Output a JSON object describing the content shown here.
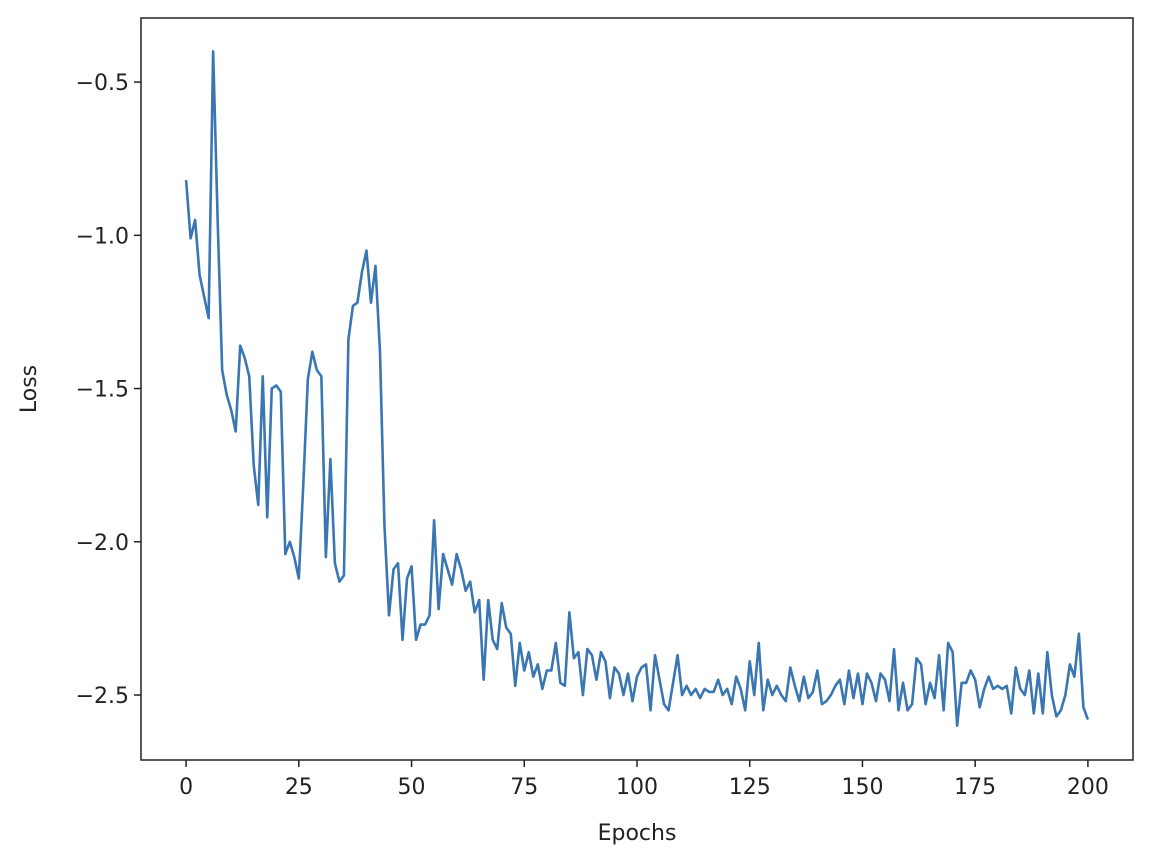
{
  "chart_data": {
    "type": "line",
    "x_label": "Epochs",
    "y_label": "Loss",
    "xlim": [
      -10,
      210
    ],
    "ylim": [
      -2.712,
      -0.291
    ],
    "xticks": [
      0,
      25,
      50,
      75,
      100,
      125,
      150,
      175,
      200
    ],
    "yticks": [
      {
        "value": -0.5,
        "label": "−0.5"
      },
      {
        "value": -1.0,
        "label": "−1.0"
      },
      {
        "value": -1.5,
        "label": "−1.5"
      },
      {
        "value": -2.0,
        "label": "−2.0"
      },
      {
        "value": -2.5,
        "label": "−2.5"
      }
    ],
    "x": [
      0,
      1,
      2,
      3,
      4,
      5,
      6,
      7,
      8,
      9,
      10,
      11,
      12,
      13,
      14,
      15,
      16,
      17,
      18,
      19,
      20,
      21,
      22,
      23,
      24,
      25,
      26,
      27,
      28,
      29,
      30,
      31,
      32,
      33,
      34,
      35,
      36,
      37,
      38,
      39,
      40,
      41,
      42,
      43,
      44,
      45,
      46,
      47,
      48,
      49,
      50,
      51,
      52,
      53,
      54,
      55,
      56,
      57,
      58,
      59,
      60,
      61,
      62,
      63,
      64,
      65,
      66,
      67,
      68,
      69,
      70,
      71,
      72,
      73,
      74,
      75,
      76,
      77,
      78,
      79,
      80,
      81,
      82,
      83,
      84,
      85,
      86,
      87,
      88,
      89,
      90,
      91,
      92,
      93,
      94,
      95,
      96,
      97,
      98,
      99,
      100,
      101,
      102,
      103,
      104,
      105,
      106,
      107,
      108,
      109,
      110,
      111,
      112,
      113,
      114,
      115,
      116,
      117,
      118,
      119,
      120,
      121,
      122,
      123,
      124,
      125,
      126,
      127,
      128,
      129,
      130,
      131,
      132,
      133,
      134,
      135,
      136,
      137,
      138,
      139,
      140,
      141,
      142,
      143,
      144,
      145,
      146,
      147,
      148,
      149,
      150,
      151,
      152,
      153,
      154,
      155,
      156,
      157,
      158,
      159,
      160,
      161,
      162,
      163,
      164,
      165,
      166,
      167,
      168,
      169,
      170,
      171,
      172,
      173,
      174,
      175,
      176,
      177,
      178,
      179,
      180,
      181,
      182,
      183,
      184,
      185,
      186,
      187,
      188,
      189,
      190,
      191,
      192,
      193,
      194,
      195,
      196,
      197,
      198,
      199,
      200
    ],
    "series": [
      {
        "color": "#3a76b2",
        "values": [
          -0.82,
          -1.01,
          -0.95,
          -1.13,
          -1.2,
          -1.27,
          -0.4,
          -0.95,
          -1.44,
          -1.52,
          -1.57,
          -1.64,
          -1.36,
          -1.4,
          -1.46,
          -1.75,
          -1.88,
          -1.46,
          -1.92,
          -1.5,
          -1.49,
          -1.51,
          -2.04,
          -2.0,
          -2.05,
          -2.12,
          -1.81,
          -1.47,
          -1.38,
          -1.44,
          -1.46,
          -2.05,
          -1.73,
          -2.07,
          -2.13,
          -2.11,
          -1.34,
          -1.23,
          -1.22,
          -1.12,
          -1.05,
          -1.22,
          -1.1,
          -1.38,
          -1.95,
          -2.24,
          -2.09,
          -2.07,
          -2.32,
          -2.12,
          -2.08,
          -2.32,
          -2.27,
          -2.27,
          -2.24,
          -1.93,
          -2.22,
          -2.04,
          -2.09,
          -2.14,
          -2.04,
          -2.09,
          -2.16,
          -2.13,
          -2.23,
          -2.19,
          -2.45,
          -2.19,
          -2.32,
          -2.35,
          -2.2,
          -2.28,
          -2.3,
          -2.47,
          -2.33,
          -2.42,
          -2.36,
          -2.44,
          -2.4,
          -2.48,
          -2.42,
          -2.42,
          -2.33,
          -2.46,
          -2.47,
          -2.23,
          -2.38,
          -2.36,
          -2.5,
          -2.35,
          -2.37,
          -2.45,
          -2.36,
          -2.39,
          -2.51,
          -2.41,
          -2.43,
          -2.5,
          -2.43,
          -2.52,
          -2.44,
          -2.41,
          -2.4,
          -2.55,
          -2.37,
          -2.45,
          -2.53,
          -2.55,
          -2.46,
          -2.37,
          -2.5,
          -2.47,
          -2.5,
          -2.48,
          -2.51,
          -2.48,
          -2.49,
          -2.49,
          -2.45,
          -2.5,
          -2.48,
          -2.53,
          -2.44,
          -2.48,
          -2.55,
          -2.39,
          -2.5,
          -2.33,
          -2.55,
          -2.45,
          -2.5,
          -2.47,
          -2.5,
          -2.52,
          -2.41,
          -2.47,
          -2.52,
          -2.44,
          -2.51,
          -2.49,
          -2.42,
          -2.53,
          -2.52,
          -2.5,
          -2.47,
          -2.45,
          -2.53,
          -2.42,
          -2.51,
          -2.43,
          -2.53,
          -2.43,
          -2.46,
          -2.52,
          -2.43,
          -2.45,
          -2.52,
          -2.35,
          -2.55,
          -2.46,
          -2.55,
          -2.53,
          -2.38,
          -2.4,
          -2.53,
          -2.46,
          -2.51,
          -2.37,
          -2.55,
          -2.33,
          -2.36,
          -2.6,
          -2.46,
          -2.46,
          -2.42,
          -2.45,
          -2.54,
          -2.48,
          -2.44,
          -2.48,
          -2.47,
          -2.48,
          -2.47,
          -2.56,
          -2.41,
          -2.48,
          -2.5,
          -2.42,
          -2.56,
          -2.43,
          -2.56,
          -2.36,
          -2.5,
          -2.57,
          -2.55,
          -2.5,
          -2.4,
          -2.44,
          -2.3,
          -2.54,
          -2.58
        ]
      }
    ]
  }
}
